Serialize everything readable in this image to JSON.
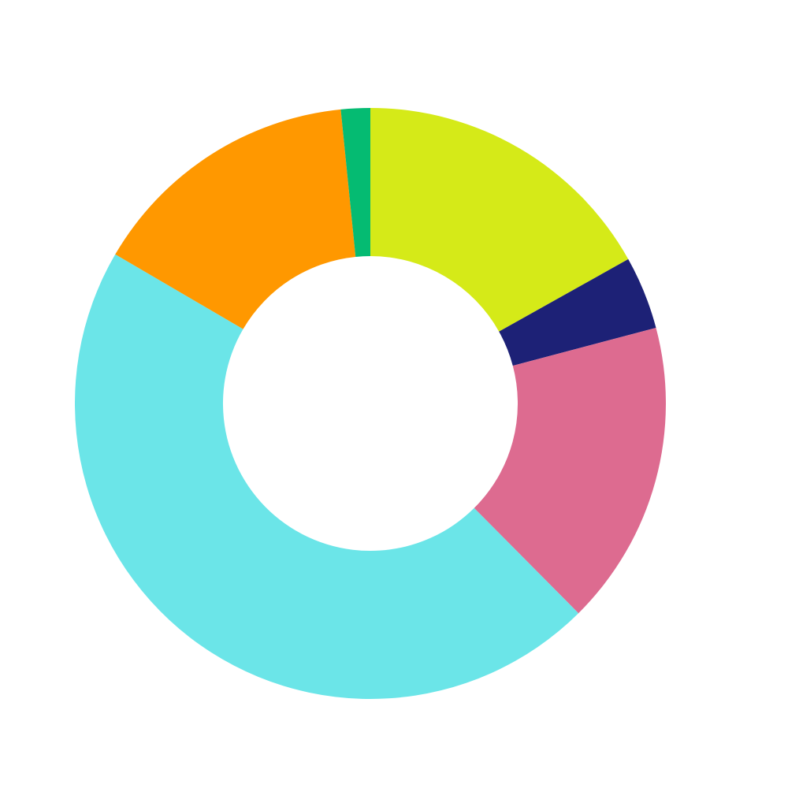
{
  "chart_data": {
    "type": "pie",
    "style": "donut",
    "start_angle": "12 o'clock",
    "direction": "clockwise",
    "legend": "none",
    "slices": [
      {
        "value": 16.9,
        "color": "#D5EA18"
      },
      {
        "value": 4.0,
        "color": "#1D2176"
      },
      {
        "value": 16.7,
        "color": "#DD6B90"
      },
      {
        "value": 45.9,
        "color": "#6BE5E8"
      },
      {
        "value": 15.0,
        "color": "#FF9800"
      },
      {
        "value": 1.6,
        "color": "#05BB72"
      }
    ]
  }
}
